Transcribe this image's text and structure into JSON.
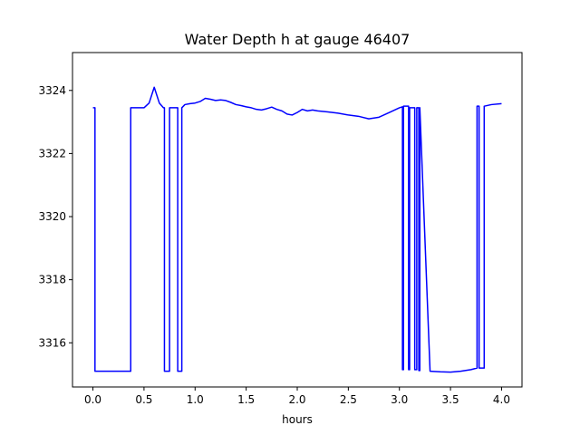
{
  "chart_data": {
    "type": "line",
    "title": "Water Depth h at gauge 46407",
    "xlabel": "hours",
    "ylabel": "",
    "xlim": [
      -0.2,
      4.2
    ],
    "ylim": [
      3314.6,
      3325.2
    ],
    "xticks": [
      0.0,
      0.5,
      1.0,
      1.5,
      2.0,
      2.5,
      3.0,
      3.5,
      4.0
    ],
    "xtick_labels": [
      "0.0",
      "0.5",
      "1.0",
      "1.5",
      "2.0",
      "2.5",
      "3.0",
      "3.5",
      "4.0"
    ],
    "yticks": [
      3316,
      3318,
      3320,
      3322,
      3324
    ],
    "ytick_labels": [
      "3316",
      "3318",
      "3320",
      "3322",
      "3324"
    ],
    "grid": false,
    "series": [
      {
        "color": "#0000ff",
        "x": [
          0.0,
          0.02,
          0.02,
          0.37,
          0.37,
          0.5,
          0.55,
          0.6,
          0.65,
          0.69,
          0.7,
          0.7,
          0.75,
          0.75,
          0.83,
          0.83,
          0.87,
          0.87,
          0.9,
          0.95,
          1.0,
          1.05,
          1.1,
          1.15,
          1.2,
          1.25,
          1.3,
          1.35,
          1.4,
          1.45,
          1.5,
          1.55,
          1.6,
          1.65,
          1.7,
          1.75,
          1.8,
          1.85,
          1.9,
          1.95,
          2.0,
          2.05,
          2.1,
          2.15,
          2.2,
          2.3,
          2.4,
          2.5,
          2.6,
          2.7,
          2.8,
          2.9,
          3.0,
          3.03,
          3.03,
          3.04,
          3.04,
          3.09,
          3.09,
          3.1,
          3.1,
          3.15,
          3.15,
          3.17,
          3.17,
          3.19,
          3.19,
          3.2,
          3.2,
          3.3,
          3.4,
          3.5,
          3.6,
          3.7,
          3.76,
          3.76,
          3.78,
          3.78,
          3.83,
          3.83,
          3.9,
          4.0
        ],
        "y": [
          3323.45,
          3323.45,
          3315.1,
          3315.1,
          3323.45,
          3323.45,
          3323.6,
          3324.1,
          3323.6,
          3323.45,
          3323.45,
          3315.1,
          3315.1,
          3323.45,
          3323.45,
          3315.1,
          3315.1,
          3323.45,
          3323.55,
          3323.58,
          3323.6,
          3323.65,
          3323.75,
          3323.72,
          3323.68,
          3323.7,
          3323.68,
          3323.62,
          3323.55,
          3323.52,
          3323.48,
          3323.45,
          3323.4,
          3323.38,
          3323.42,
          3323.47,
          3323.4,
          3323.35,
          3323.25,
          3323.22,
          3323.3,
          3323.4,
          3323.35,
          3323.38,
          3323.35,
          3323.32,
          3323.28,
          3323.22,
          3323.18,
          3323.1,
          3323.15,
          3323.3,
          3323.45,
          3323.48,
          3315.15,
          3315.15,
          3323.5,
          3323.5,
          3315.15,
          3315.15,
          3323.45,
          3323.45,
          3315.15,
          3315.15,
          3323.45,
          3323.45,
          3315.12,
          3315.12,
          3323.45,
          3315.1,
          3315.08,
          3315.07,
          3315.1,
          3315.15,
          3315.2,
          3323.5,
          3323.5,
          3315.2,
          3315.2,
          3323.5,
          3323.55,
          3323.58
        ]
      }
    ]
  }
}
